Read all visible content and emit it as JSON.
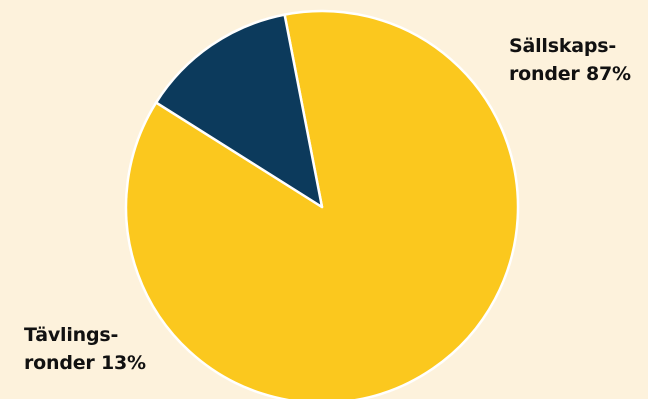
{
  "colors": {
    "background": "#fdf2dc",
    "slice_a": "#fbc81e",
    "slice_b": "#0c3a5c",
    "separator": "#ffffff",
    "label_text": "#111111"
  },
  "chart_data": {
    "type": "pie",
    "title": "",
    "start_angle_deg": 259,
    "direction": "clockwise",
    "slices": [
      {
        "label_line1": "Sällskaps-",
        "label_line2": "ronder 87%",
        "value": 87,
        "color": "#fbc81e"
      },
      {
        "label_line1": "Tävlings-",
        "label_line2": "ronder 13%",
        "value": 13,
        "color": "#0c3a5c"
      }
    ]
  }
}
